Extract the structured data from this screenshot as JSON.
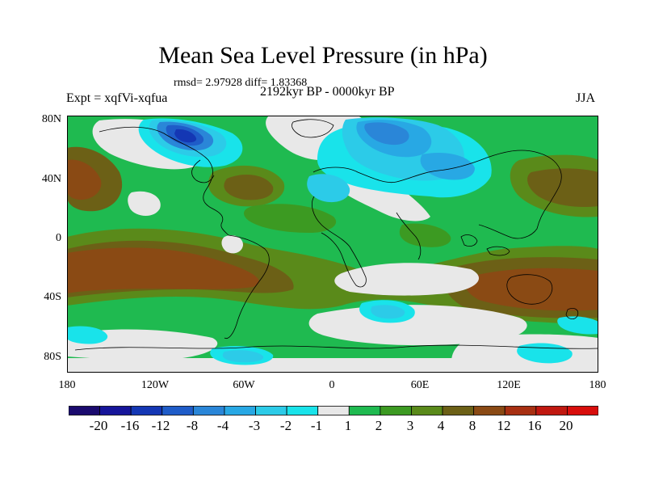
{
  "title": "Mean Sea Level Pressure (in hPa)",
  "stats": "rmsd= 2.97928 diff= 1.83368",
  "expt": "Expt = xqfVi-xqfua",
  "period": "2192kyr BP - 0000kyr BP",
  "season": "JJA",
  "lat_labels": [
    "80N",
    "40N",
    "0",
    "40S",
    "80S"
  ],
  "lon_labels": [
    "180",
    "120W",
    "60W",
    "0",
    "60E",
    "120E",
    "180"
  ],
  "colorbar": {
    "labels": [
      "-20",
      "-16",
      "-12",
      "-8",
      "-4",
      "-3",
      "-2",
      "-1",
      "1",
      "2",
      "3",
      "4",
      "8",
      "12",
      "16",
      "20"
    ],
    "colors": [
      "#1a0a6e",
      "#16159a",
      "#1437b4",
      "#1f5cc8",
      "#2a86d8",
      "#28a8e4",
      "#2ccbe8",
      "#19e3ea",
      "#e8e8e8",
      "#1fba50",
      "#3c9a22",
      "#5a8a1a",
      "#6c6016",
      "#8a4a14",
      "#a83012",
      "#c01810",
      "#d80e0c"
    ]
  },
  "map_colors": {
    "white": "#e8e8e8",
    "green": "#1fba50",
    "dkgreen": "#3c9a22",
    "olive": "#5a8a1a",
    "olivebr": "#6c6016",
    "brown": "#8a4a14",
    "cyan": "#19e3ea",
    "ltblue": "#2ccbe8",
    "blue": "#28a8e4",
    "midblue": "#2a86d8",
    "dkblue": "#1f5cc8",
    "navy": "#1437b4"
  }
}
